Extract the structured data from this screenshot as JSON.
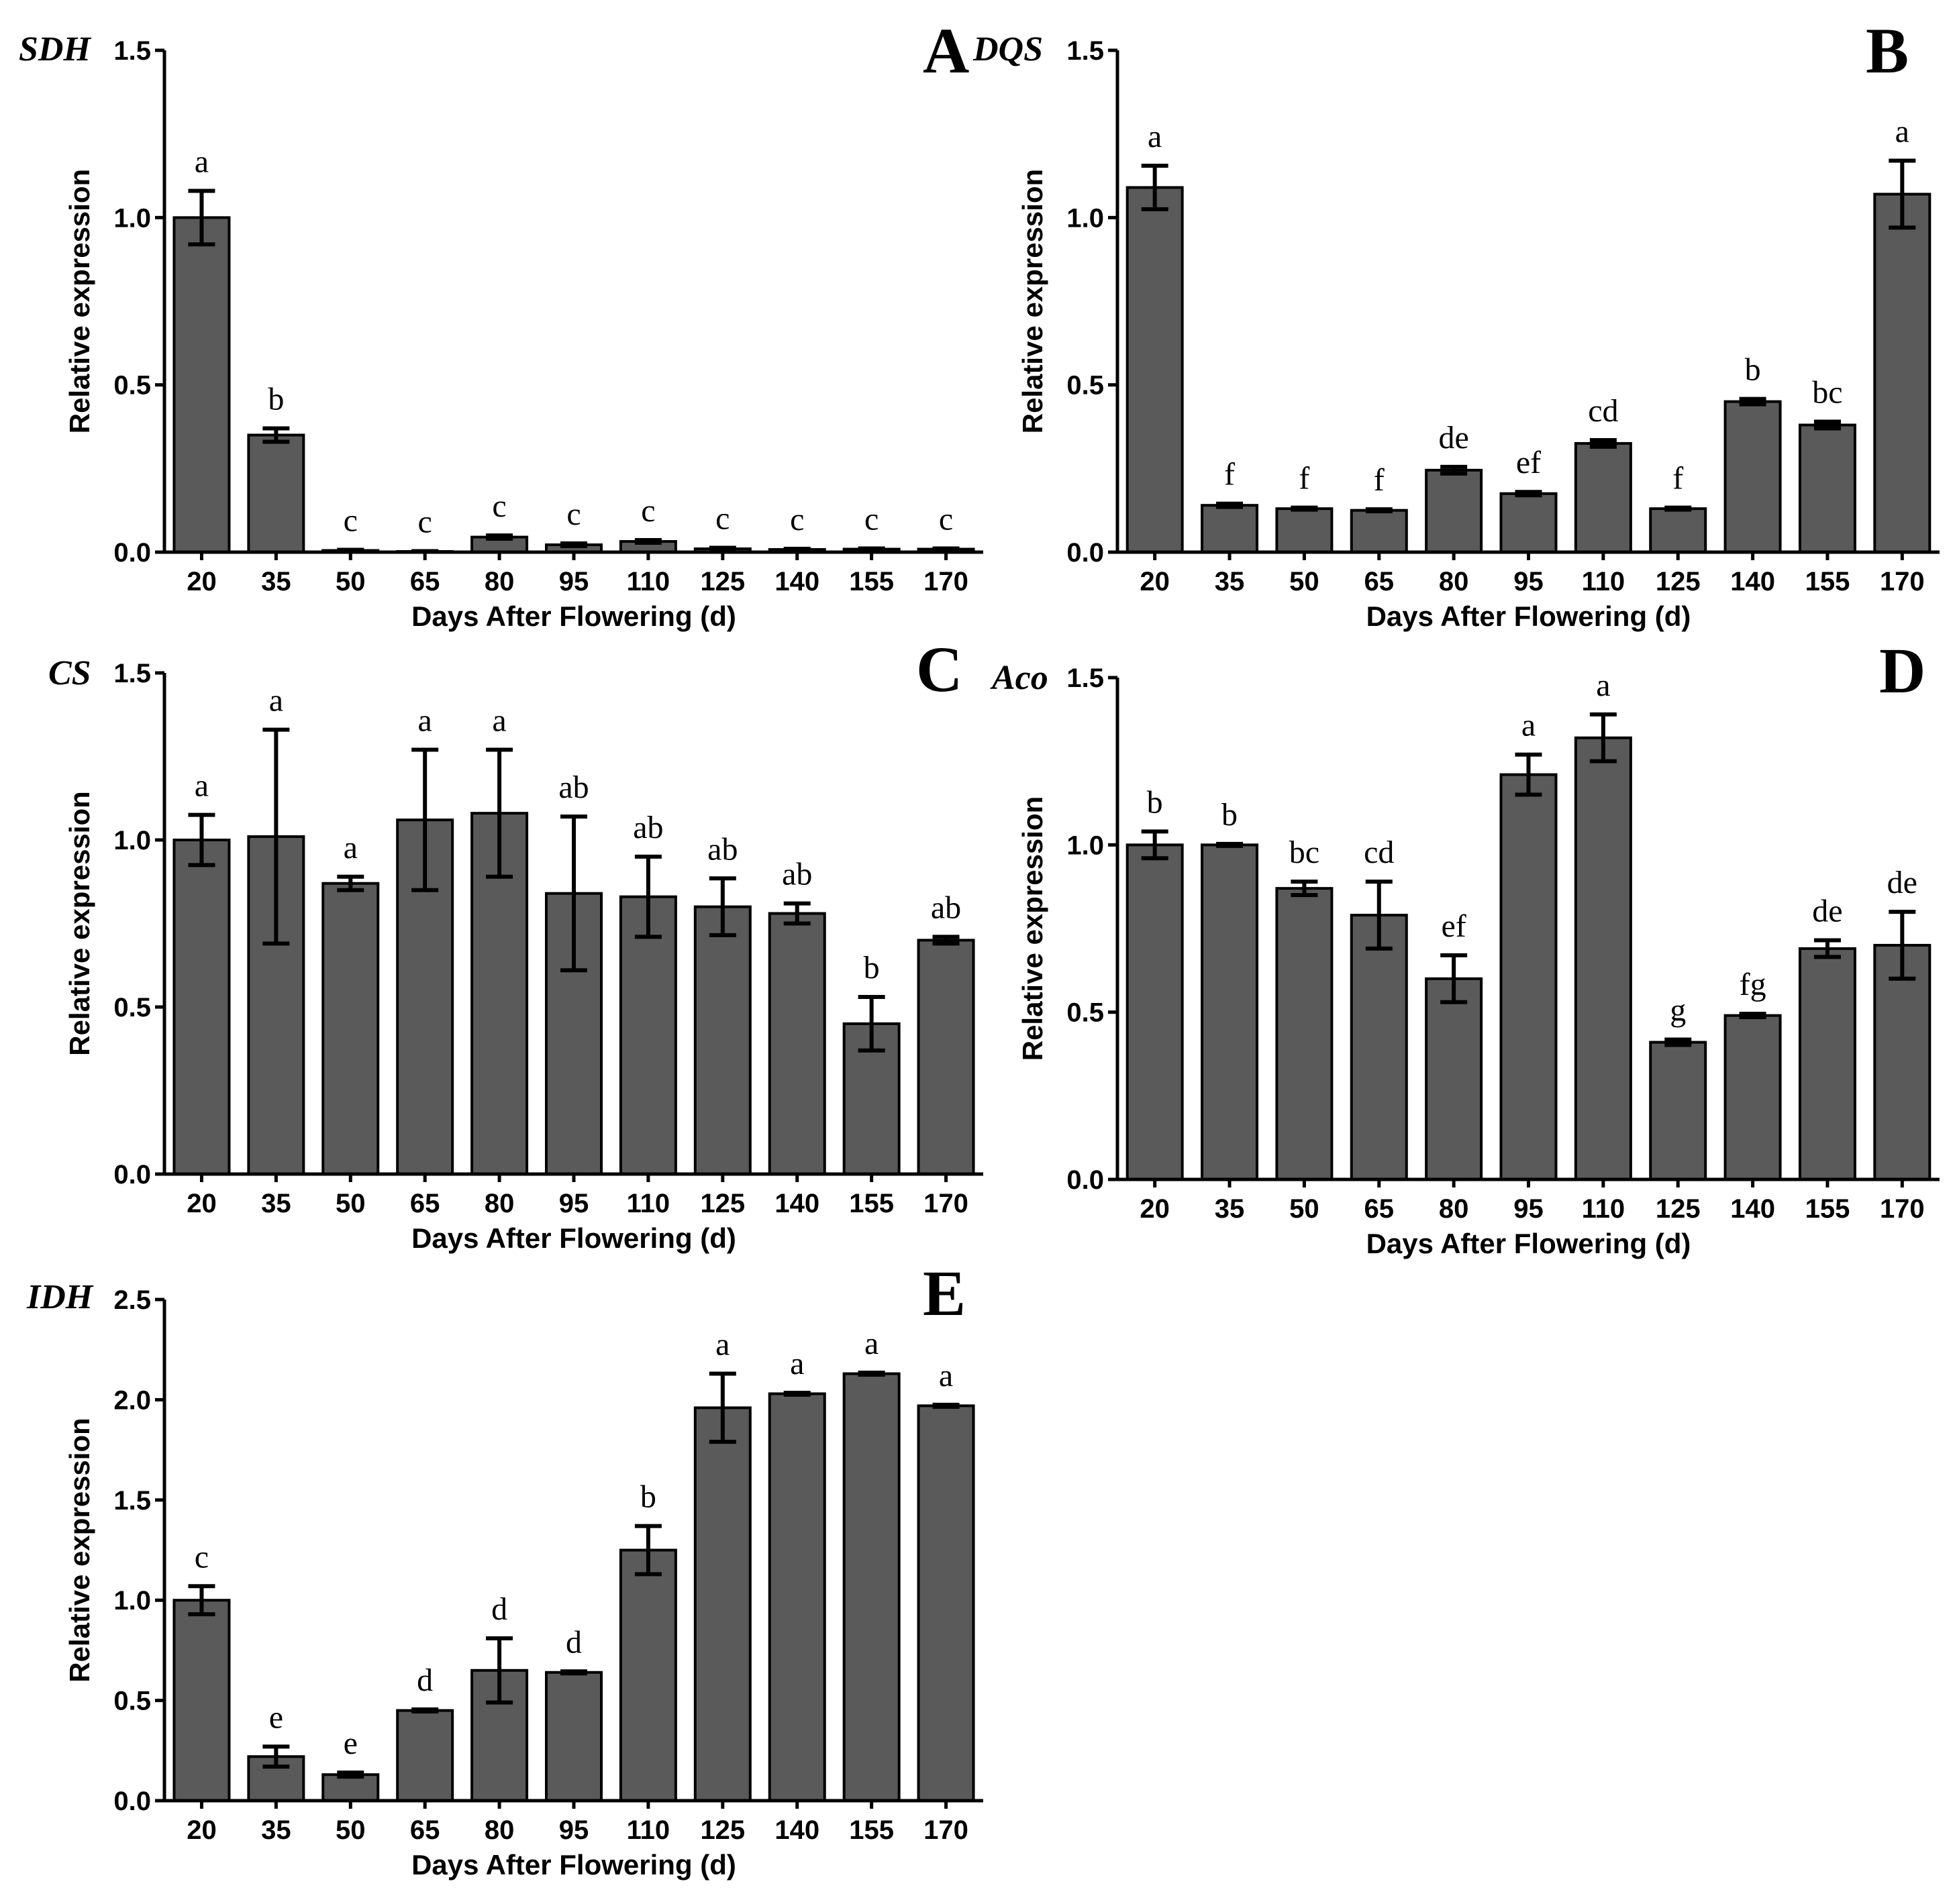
{
  "chart_data": [
    {
      "type": "bar",
      "panel": "A",
      "gene": "SDH",
      "ylabel": "Relative expression",
      "xlabel": "Days After Flowering (d)",
      "categories": [
        "20",
        "35",
        "50",
        "65",
        "80",
        "95",
        "110",
        "125",
        "140",
        "155",
        "170"
      ],
      "values": [
        1.0,
        0.35,
        0.005,
        0.002,
        0.045,
        0.022,
        0.032,
        0.01,
        0.008,
        0.009,
        0.009
      ],
      "errors": [
        0.08,
        0.02,
        0.002,
        0.001,
        0.005,
        0.004,
        0.004,
        0.003,
        0.002,
        0.002,
        0.002
      ],
      "letters": [
        "a",
        "b",
        "c",
        "c",
        "c",
        "c",
        "c",
        "c",
        "c",
        "c",
        "c"
      ],
      "ylim": [
        0,
        1.5
      ],
      "yticks": [
        0,
        0.5,
        1.0,
        1.5
      ],
      "ytick_labels": [
        "0.0",
        "0.5",
        "1.0",
        "1.5"
      ]
    },
    {
      "type": "bar",
      "panel": "B",
      "gene": "DQS",
      "ylabel": "Relative expression",
      "xlabel": "Days After Flowering (d)",
      "categories": [
        "20",
        "35",
        "50",
        "65",
        "80",
        "95",
        "110",
        "125",
        "140",
        "155",
        "170"
      ],
      "values": [
        1.09,
        0.14,
        0.13,
        0.125,
        0.245,
        0.175,
        0.325,
        0.13,
        0.45,
        0.38,
        1.07
      ],
      "errors": [
        0.065,
        0.005,
        0.003,
        0.003,
        0.01,
        0.005,
        0.01,
        0.003,
        0.008,
        0.01,
        0.1
      ],
      "letters": [
        "a",
        "f",
        "f",
        "f",
        "de",
        "ef",
        "cd",
        "f",
        "b",
        "bc",
        "a"
      ],
      "ylim": [
        0,
        1.5
      ],
      "yticks": [
        0,
        0.5,
        1.0,
        1.5
      ],
      "ytick_labels": [
        "0.0",
        "0.5",
        "1.0",
        "1.5"
      ]
    },
    {
      "type": "bar",
      "panel": "C",
      "gene": "CS",
      "ylabel": "Relative expression",
      "xlabel": "Days After Flowering (d)",
      "categories": [
        "20",
        "35",
        "50",
        "65",
        "80",
        "95",
        "110",
        "125",
        "140",
        "155",
        "170"
      ],
      "values": [
        1.0,
        1.01,
        0.87,
        1.06,
        1.08,
        0.84,
        0.83,
        0.8,
        0.78,
        0.45,
        0.7
      ],
      "errors": [
        0.075,
        0.32,
        0.02,
        0.21,
        0.19,
        0.23,
        0.12,
        0.085,
        0.03,
        0.08,
        0.01
      ],
      "letters": [
        "a",
        "a",
        "a",
        "a",
        "a",
        "ab",
        "ab",
        "ab",
        "ab",
        "b",
        "ab"
      ],
      "ylim": [
        0,
        1.5
      ],
      "yticks": [
        0,
        0.5,
        1.0,
        1.5
      ],
      "ytick_labels": [
        "0.0",
        "0.5",
        "1.0",
        "1.5"
      ]
    },
    {
      "type": "bar",
      "panel": "D",
      "gene": "Aco",
      "ylabel": "Relative expression",
      "xlabel": "Days After Flowering (d)",
      "categories": [
        "20",
        "35",
        "50",
        "65",
        "80",
        "95",
        "110",
        "125",
        "140",
        "155",
        "170"
      ],
      "values": [
        1.0,
        1.0,
        0.87,
        0.79,
        0.6,
        1.21,
        1.32,
        0.41,
        0.49,
        0.69,
        0.7
      ],
      "errors": [
        0.04,
        0.003,
        0.02,
        0.1,
        0.07,
        0.06,
        0.07,
        0.008,
        0.005,
        0.025,
        0.1
      ],
      "letters": [
        "b",
        "b",
        "bc",
        "cd",
        "ef",
        "a",
        "a",
        "g",
        "fg",
        "de",
        "de"
      ],
      "ylim": [
        0,
        1.5
      ],
      "yticks": [
        0,
        0.5,
        1.0,
        1.5
      ],
      "ytick_labels": [
        "0.0",
        "0.5",
        "1.0",
        "1.5"
      ]
    },
    {
      "type": "bar",
      "panel": "E",
      "gene": "IDH",
      "ylabel": "Relative expression",
      "xlabel": "Days After Flowering (d)",
      "categories": [
        "20",
        "35",
        "50",
        "65",
        "80",
        "95",
        "110",
        "125",
        "140",
        "155",
        "170"
      ],
      "values": [
        1.0,
        0.22,
        0.13,
        0.45,
        0.65,
        0.64,
        1.25,
        1.96,
        2.03,
        2.13,
        1.97
      ],
      "errors": [
        0.07,
        0.05,
        0.01,
        0.005,
        0.16,
        0.005,
        0.12,
        0.17,
        0.005,
        0.005,
        0.005
      ],
      "letters": [
        "c",
        "e",
        "e",
        "d",
        "d",
        "d",
        "b",
        "a",
        "a",
        "a",
        "a"
      ],
      "ylim": [
        0,
        2.5
      ],
      "yticks": [
        0,
        0.5,
        1.0,
        1.5,
        2.0,
        2.5
      ],
      "ytick_labels": [
        "0.0",
        "0.5",
        "1.0",
        "1.5",
        "2.0",
        "2.5"
      ]
    }
  ]
}
